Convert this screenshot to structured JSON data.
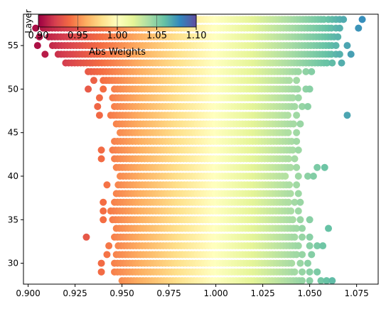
{
  "chart_data": {
    "type": "scatter",
    "title": "",
    "xlabel": "",
    "ylabel": "Layer",
    "xlim": [
      0.8975,
      1.0865
    ],
    "ylim": [
      27.6,
      58.6
    ],
    "xticks": [
      0.9,
      0.925,
      0.95,
      0.975,
      1.0,
      1.025,
      1.05,
      1.075
    ],
    "xtick_labels": [
      "0.900",
      "0.925",
      "0.950",
      "0.975",
      "1.000",
      "1.025",
      "1.050",
      "1.075"
    ],
    "yticks": [
      30,
      35,
      40,
      45,
      50,
      55
    ],
    "ytick_labels": [
      "30",
      "35",
      "40",
      "45",
      "50",
      "55"
    ],
    "grid": false,
    "colormap": "Spectral",
    "colorbar": {
      "label": "Abs Weights",
      "range": [
        0.9,
        1.1
      ],
      "ticks": [
        0.9,
        0.95,
        1.0,
        1.05,
        1.1
      ],
      "tick_labels": [
        "0.90",
        "0.95",
        "1.00",
        "1.05",
        "1.10"
      ],
      "placement": "top-left"
    },
    "layers": [
      {
        "layer": 58,
        "core": [
          0.912,
          1.058
        ],
        "outliers": [
          1.06,
          1.062,
          1.064,
          1.066,
          1.068,
          1.078
        ]
      },
      {
        "layer": 57,
        "core": [
          0.908,
          1.062
        ],
        "outliers": [
          0.904,
          1.064,
          1.066,
          1.076
        ]
      },
      {
        "layer": 56,
        "core": [
          0.911,
          1.063
        ],
        "outliers": [
          0.906,
          1.065
        ]
      },
      {
        "layer": 55,
        "core": [
          0.913,
          1.062
        ],
        "outliers": [
          0.905,
          1.064,
          1.07
        ]
      },
      {
        "layer": 54,
        "core": [
          0.916,
          1.062
        ],
        "outliers": [
          0.909,
          1.064,
          1.066,
          1.072
        ]
      },
      {
        "layer": 53,
        "core": [
          0.92,
          1.06
        ],
        "outliers": [
          1.062,
          1.067
        ]
      },
      {
        "layer": 52,
        "core": [
          0.932,
          1.045
        ],
        "outliers": [
          1.048,
          1.051
        ]
      },
      {
        "layer": 51,
        "core": [
          0.94,
          1.04
        ],
        "outliers": [
          0.935,
          1.043
        ]
      },
      {
        "layer": 50,
        "core": [
          0.946,
          1.044
        ],
        "outliers": [
          0.932,
          0.94,
          1.048,
          1.05
        ]
      },
      {
        "layer": 49,
        "core": [
          0.945,
          1.041
        ],
        "outliers": [
          0.938,
          1.044
        ]
      },
      {
        "layer": 48,
        "core": [
          0.946,
          1.043
        ],
        "outliers": [
          0.937,
          1.046,
          1.049
        ]
      },
      {
        "layer": 47,
        "core": [
          0.944,
          1.039
        ],
        "outliers": [
          0.938,
          1.043,
          1.07
        ]
      },
      {
        "layer": 46,
        "core": [
          0.947,
          1.042
        ],
        "outliers": [
          1.045
        ]
      },
      {
        "layer": 45,
        "core": [
          0.949,
          1.04
        ],
        "outliers": [
          1.043
        ]
      },
      {
        "layer": 44,
        "core": [
          0.946,
          1.041
        ],
        "outliers": [
          1.043
        ]
      },
      {
        "layer": 43,
        "core": [
          0.945,
          1.042
        ],
        "outliers": [
          0.939,
          1.044
        ]
      },
      {
        "layer": 42,
        "core": [
          0.946,
          1.039
        ],
        "outliers": [
          0.939,
          1.042
        ]
      },
      {
        "layer": 41,
        "core": [
          0.947,
          1.04
        ],
        "outliers": [
          1.043,
          1.054,
          1.058
        ]
      },
      {
        "layer": 40,
        "core": [
          0.949,
          1.038
        ],
        "outliers": [
          1.044,
          1.049,
          1.052
        ]
      },
      {
        "layer": 39,
        "core": [
          0.948,
          1.04
        ],
        "outliers": [
          0.942,
          1.043
        ]
      },
      {
        "layer": 38,
        "core": [
          0.947,
          1.041
        ],
        "outliers": [
          1.044
        ]
      },
      {
        "layer": 37,
        "core": [
          0.946,
          1.039
        ],
        "outliers": [
          0.94,
          1.042,
          1.045
        ]
      },
      {
        "layer": 36,
        "core": [
          0.944,
          1.04
        ],
        "outliers": [
          0.94,
          1.044
        ]
      },
      {
        "layer": 35,
        "core": [
          0.945,
          1.041
        ],
        "outliers": [
          0.94,
          1.045,
          1.05
        ]
      },
      {
        "layer": 34,
        "core": [
          0.947,
          1.043
        ],
        "outliers": [
          1.046,
          1.06
        ]
      },
      {
        "layer": 33,
        "core": [
          0.946,
          1.042
        ],
        "outliers": [
          0.931,
          1.046,
          1.05
        ]
      },
      {
        "layer": 32,
        "core": [
          0.948,
          1.044
        ],
        "outliers": [
          0.943,
          1.05,
          1.054,
          1.057
        ]
      },
      {
        "layer": 31,
        "core": [
          0.947,
          1.043
        ],
        "outliers": [
          0.942,
          1.046,
          1.051
        ]
      },
      {
        "layer": 30,
        "core": [
          0.946,
          1.041
        ],
        "outliers": [
          0.939,
          1.045,
          1.049
        ]
      },
      {
        "layer": 29,
        "core": [
          0.946,
          1.043
        ],
        "outliers": [
          0.939,
          1.046,
          1.05,
          1.054
        ]
      },
      {
        "layer": 28,
        "core": [
          0.95,
          1.046
        ],
        "outliers": [
          1.05,
          1.056,
          1.059,
          1.062
        ]
      }
    ]
  }
}
